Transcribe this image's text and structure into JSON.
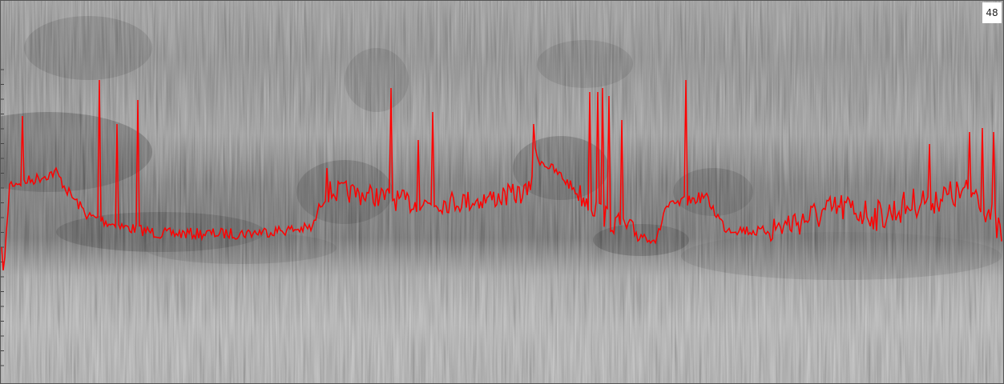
{
  "label": "48"
}
